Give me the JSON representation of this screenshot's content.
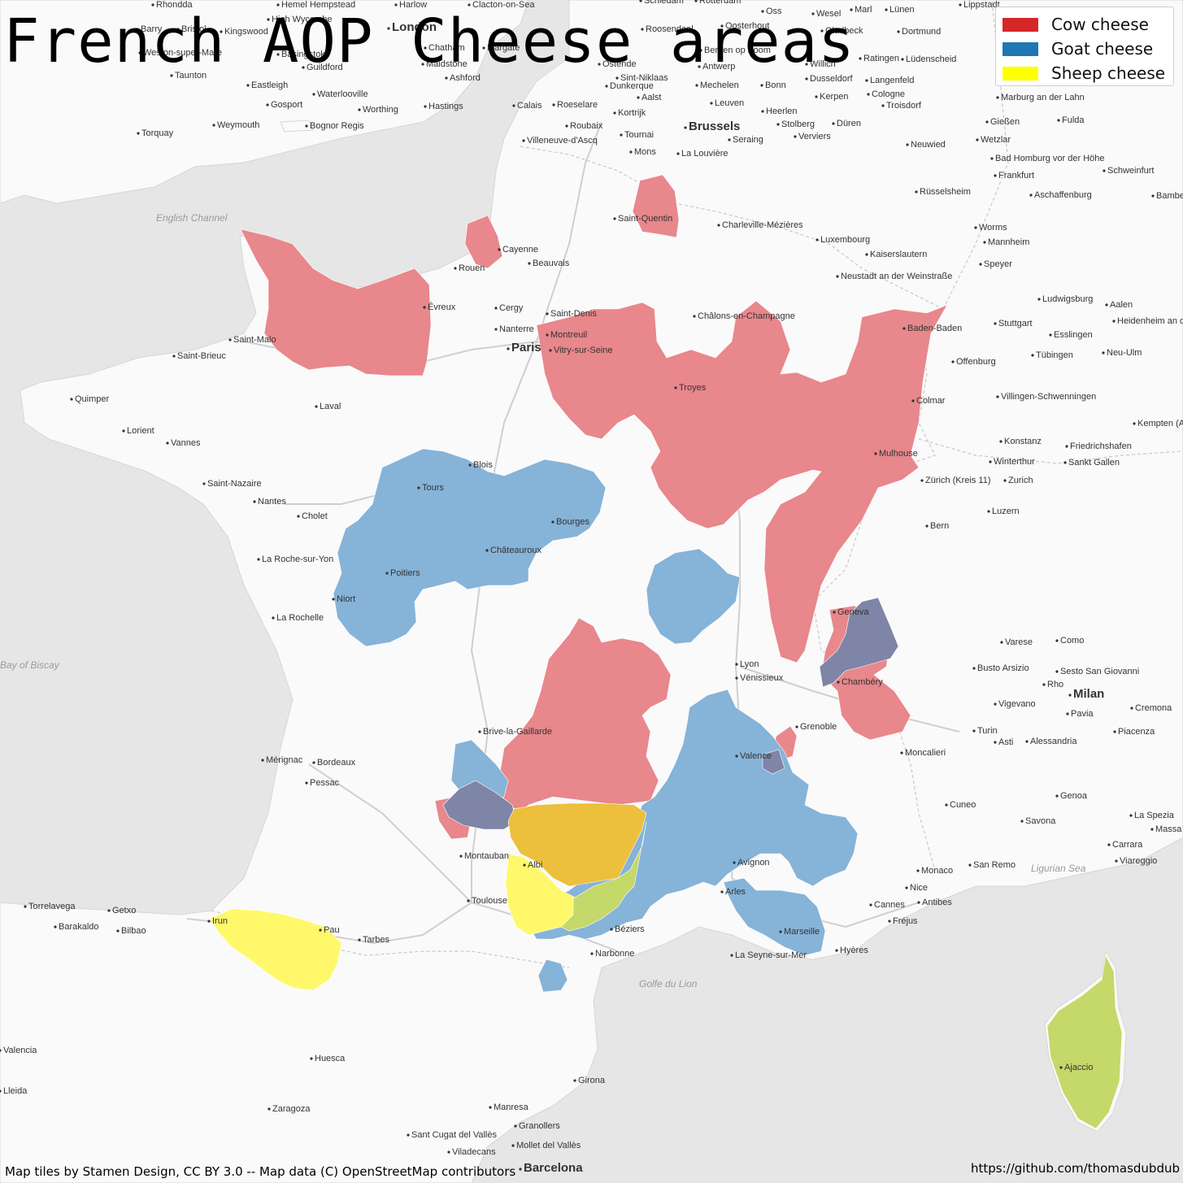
{
  "title": "French AOP Cheese areas",
  "legend": [
    {
      "label": "Cow cheese",
      "color": "#d62728"
    },
    {
      "label": "Goat cheese",
      "color": "#1f77b4"
    },
    {
      "label": "Sheep cheese",
      "color": "#ffff00"
    }
  ],
  "area_colors": {
    "cow": "#e8878c",
    "goat": "#86b3d8",
    "sheep": "#fff86a",
    "cow_sheep": "#ecbf3c",
    "goat_sheep": "#c5d86a",
    "cow_goat": "#7e85a6"
  },
  "attribution_left": "Map tiles by Stamen Design, CC BY 3.0 -- Map data (C) OpenStreetMap contributors",
  "attribution_right": "https://github.com/thomasdubdub",
  "sea_labels": [
    "English Channel",
    "Bay of Biscay",
    "Golfe du Lion",
    "Ligurian Sea"
  ],
  "cities_major": [
    "Paris",
    "Brussels",
    "Milan",
    "Barcelona",
    "London"
  ],
  "cities": [
    "Rhondda",
    "Barry",
    "Bristol",
    "Hemel Hempstead",
    "High Wycombe",
    "Harlow",
    "Clacton-on-Sea",
    "Schiedam",
    "Rotterdam",
    "Oss",
    "Wesel",
    "Marl",
    "Lünen",
    "Lippstadt",
    "Kingswood",
    "Basingstoke",
    "Chatham",
    "Margate",
    "Roosendaal",
    "Oosterhout",
    "Gladbeck",
    "Dortmund",
    "Weston-super-Mare",
    "Taunton",
    "Guildford",
    "Maidstone",
    "Ashford",
    "Ostende",
    "Sint-Niklaas",
    "Antwerp",
    "Bergen op Zoom",
    "Willich",
    "Ratingen",
    "Lüdenscheid",
    "Eastleigh",
    "Waterlooville",
    "Dunkerque",
    "Mechelen",
    "Bonn",
    "Dusseldorf",
    "Langenfeld",
    "Gosport",
    "Worthing",
    "Hastings",
    "Calais",
    "Roeselare",
    "Aalst",
    "Leuven",
    "Kerpen",
    "Cologne",
    "Troisdorf",
    "Marburg an der Lahn",
    "Torquay",
    "Weymouth",
    "Bognor Regis",
    "Roubaix",
    "Kortrijk",
    "Heerlen",
    "Stolberg",
    "Düren",
    "Gießen",
    "Fulda",
    "Villeneuve-d'Ascq",
    "Tournai",
    "Seraing",
    "Verviers",
    "Wetzlar",
    "Neuwied",
    "Mons",
    "La Louvière",
    "Bad Homburg vor der Höhe",
    "Frankfurt",
    "Schweinfurt",
    "Rüsselsheim",
    "Aschaffenburg",
    "Bamberg",
    "Saint-Quentin",
    "Charleville-Mézières",
    "Worms",
    "Mannheim",
    "Cayenne",
    "Rouen",
    "Beauvais",
    "Luxembourg",
    "Kaiserslautern",
    "Speyer",
    "Neustadt an der Weinstraße",
    "Évreux",
    "Cergy",
    "Saint-Denis",
    "Châlons-en-Champagne",
    "Ludwigsburg",
    "Aalen",
    "Nanterre",
    "Montreuil",
    "Vitry-sur-Seine",
    "Baden-Baden",
    "Stuttgart",
    "Esslingen",
    "Heidenheim an der Brenz",
    "Saint-Malo",
    "Saint-Brieuc",
    "Offenburg",
    "Tübingen",
    "Neu-Ulm",
    "Troyes",
    "Colmar",
    "Villingen-Schwenningen",
    "Quimper",
    "Laval",
    "Kempten (Allgäu)",
    "Lorient",
    "Vannes",
    "Konstanz",
    "Friedrichshafen",
    "Blois",
    "Mulhouse",
    "Winterthur",
    "Sankt Gallen",
    "Tours",
    "Saint-Nazaire",
    "Nantes",
    "Zürich (Kreis 11)",
    "Zurich",
    "Bourges",
    "Cholet",
    "Luzern",
    "Bern",
    "Châteauroux",
    "La Roche-sur-Yon",
    "Poitiers",
    "Niort",
    "Geneva",
    "La Rochelle",
    "Varese",
    "Como",
    "Lyon",
    "Busto Arsizio",
    "Sesto San Giovanni",
    "Vénissieux",
    "Rho",
    "Chambéry",
    "Vigevano",
    "Pavia",
    "Cremona",
    "Brive-la-Gaillarde",
    "Grenoble",
    "Turin",
    "Piacenza",
    "Asti",
    "Alessandria",
    "Moncalieri",
    "Mérignac",
    "Bordeaux",
    "Valence",
    "Pessac",
    "Cuneo",
    "Genoa",
    "Savona",
    "La Spezia",
    "Carrara",
    "Massa",
    "Montauban",
    "Albi",
    "Avignon",
    "Viareggio",
    "Monaco",
    "San Remo",
    "Nice",
    "Torrelavega",
    "Getxo",
    "Toulouse",
    "Arles",
    "Cannes",
    "Antibes",
    "Barakaldo",
    "Bilbao",
    "Irun",
    "Pau",
    "Tarbes",
    "Béziers",
    "Fréjus",
    "Marseille",
    "La Seyne-sur-Mer",
    "Hyères",
    "Narbonne",
    "Ajaccio",
    "Valencia",
    "Huesca",
    "Girona",
    "Zaragoza",
    "Manresa",
    "Granollers",
    "Sant Cugat del Vallès",
    "Mollet del Vallès",
    "Viladecans",
    "Lleida"
  ]
}
